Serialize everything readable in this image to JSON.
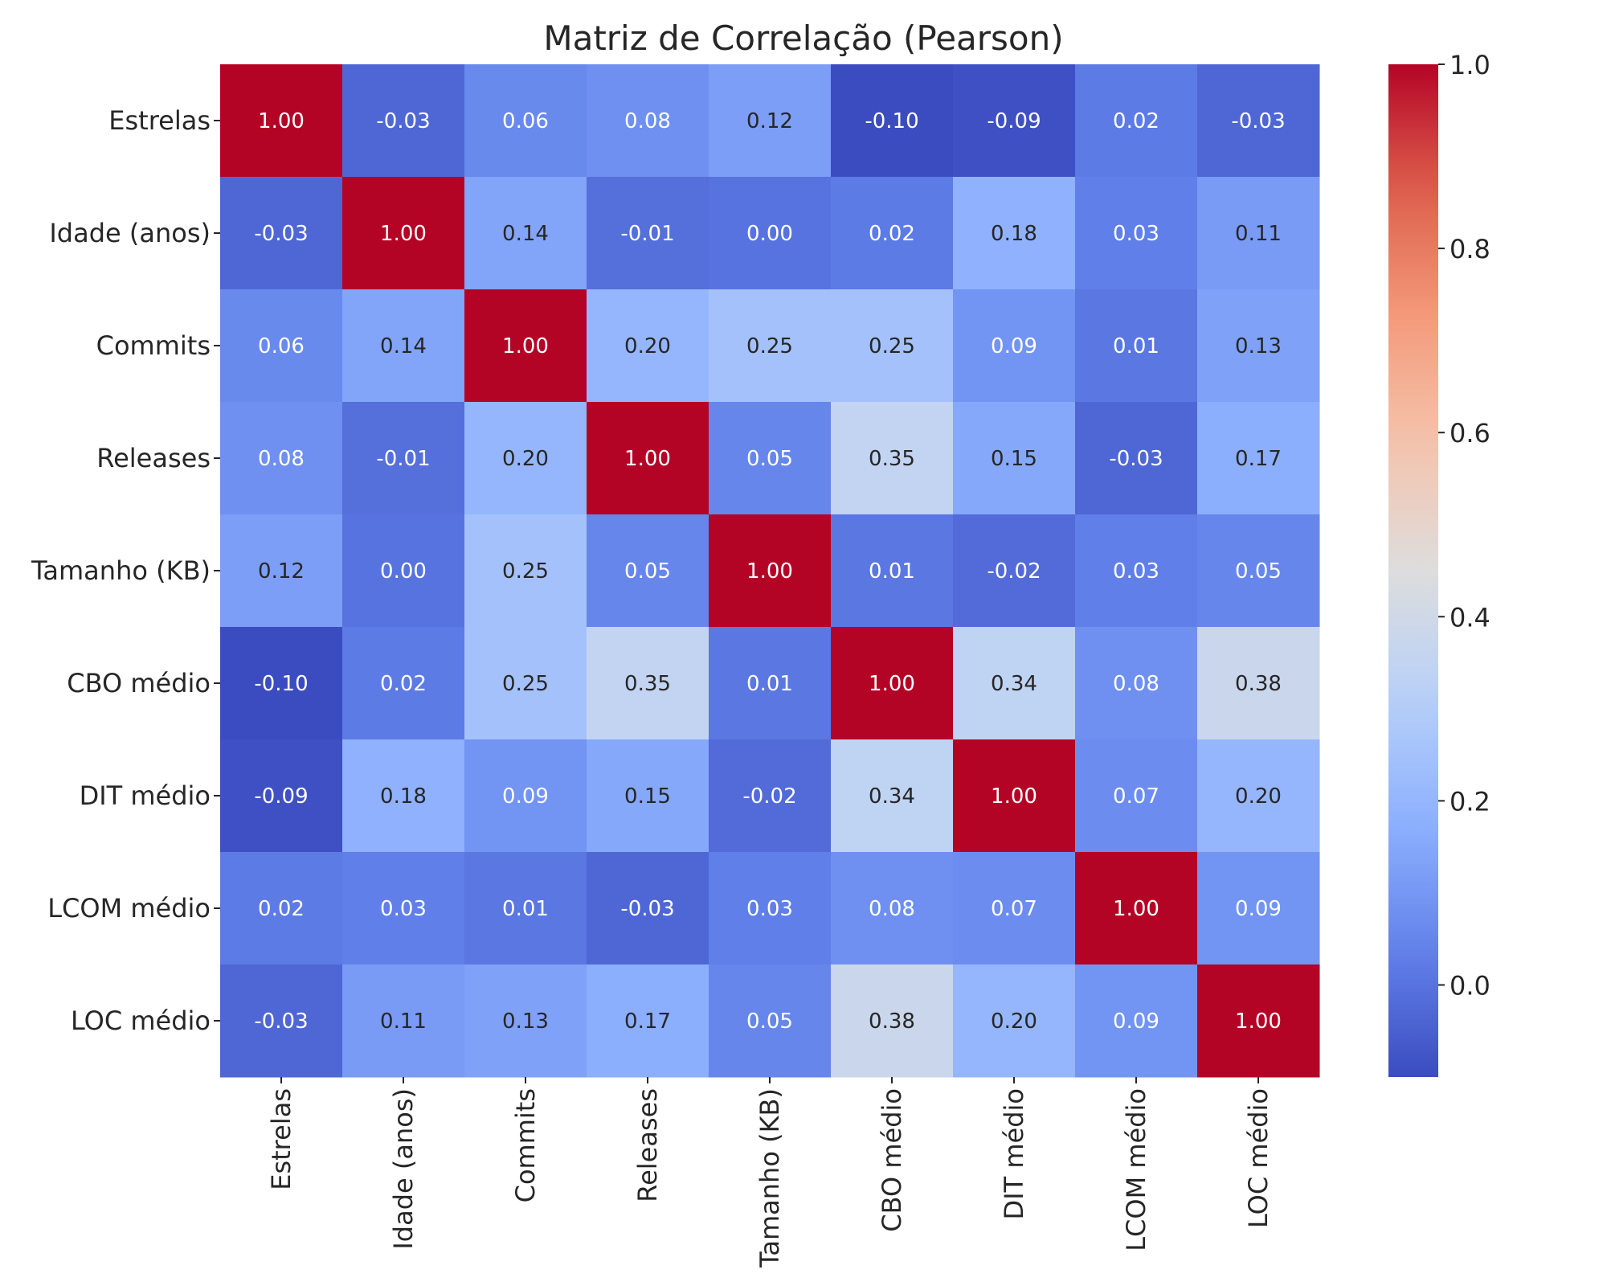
{
  "chart_data": {
    "type": "heatmap",
    "title": "Matriz de Correlação (Pearson)",
    "xlabel": "",
    "ylabel": "",
    "rows": [
      "Estrelas",
      "Idade (anos)",
      "Commits",
      "Releases",
      "Tamanho (KB)",
      "CBO médio",
      "DIT médio",
      "LCOM médio",
      "LOC médio"
    ],
    "columns": [
      "Estrelas",
      "Idade (anos)",
      "Commits",
      "Releases",
      "Tamanho (KB)",
      "CBO médio",
      "DIT médio",
      "LCOM médio",
      "LOC médio"
    ],
    "values": [
      [
        1.0,
        -0.03,
        0.06,
        0.08,
        0.12,
        -0.1,
        -0.09,
        0.02,
        -0.03
      ],
      [
        -0.03,
        1.0,
        0.14,
        -0.01,
        0.0,
        0.02,
        0.18,
        0.03,
        0.11
      ],
      [
        0.06,
        0.14,
        1.0,
        0.2,
        0.25,
        0.25,
        0.09,
        0.01,
        0.13
      ],
      [
        0.08,
        -0.01,
        0.2,
        1.0,
        0.05,
        0.35,
        0.15,
        -0.03,
        0.17
      ],
      [
        0.12,
        0.0,
        0.25,
        0.05,
        1.0,
        0.01,
        -0.02,
        0.03,
        0.05
      ],
      [
        -0.1,
        0.02,
        0.25,
        0.35,
        0.01,
        1.0,
        0.34,
        0.08,
        0.38
      ],
      [
        -0.09,
        0.18,
        0.09,
        0.15,
        -0.02,
        0.34,
        1.0,
        0.07,
        0.2
      ],
      [
        0.02,
        0.03,
        0.01,
        -0.03,
        0.03,
        0.08,
        0.07,
        1.0,
        0.09
      ],
      [
        -0.03,
        0.11,
        0.13,
        0.17,
        0.05,
        0.38,
        0.2,
        0.09,
        1.0
      ]
    ],
    "value_format": "0.00",
    "colormap": "coolwarm",
    "colorbar": {
      "range": [
        -0.1,
        1.0
      ],
      "ticks": [
        0.0,
        0.2,
        0.4,
        0.6,
        0.8,
        1.0
      ],
      "tick_labels": [
        "0.0",
        "0.2",
        "0.4",
        "0.6",
        "0.8",
        "1.0"
      ],
      "placement": "right"
    },
    "grid": false
  }
}
